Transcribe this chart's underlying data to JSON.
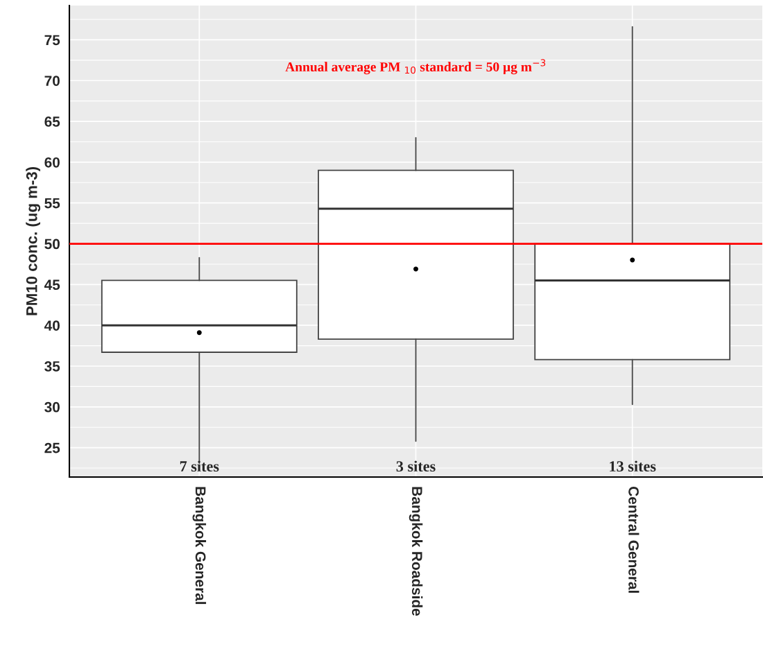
{
  "chart_data": {
    "type": "box",
    "ylabel": "PM10 conc. (ug m-3)",
    "categories": [
      "Bangkok General",
      "Bangkok Roadside",
      "Central General"
    ],
    "boxes": [
      {
        "low": 23.1,
        "q1": 36.7,
        "median": 40.0,
        "q3": 45.5,
        "high": 48.3,
        "mean": 39.1
      },
      {
        "low": 25.8,
        "q1": 38.3,
        "median": 54.3,
        "q3": 59.0,
        "high": 63.0,
        "mean": 46.9
      },
      {
        "low": 30.3,
        "q1": 35.8,
        "median": 45.5,
        "q3": 50.0,
        "high": 76.6,
        "mean": 48.0
      }
    ],
    "ylim": [
      21.4,
      79.2
    ],
    "yticks": [
      25,
      30,
      35,
      40,
      45,
      50,
      55,
      60,
      65,
      70,
      75
    ],
    "grid": true,
    "ref_lines": [
      {
        "axis": "y",
        "value": 50,
        "label": "Annual average PM $_{10}$ standard = 50 µg m$^{−3}$",
        "color": "#ff0000"
      }
    ],
    "annotations": [
      "7 sites",
      "3 sites",
      "13 sites"
    ]
  }
}
